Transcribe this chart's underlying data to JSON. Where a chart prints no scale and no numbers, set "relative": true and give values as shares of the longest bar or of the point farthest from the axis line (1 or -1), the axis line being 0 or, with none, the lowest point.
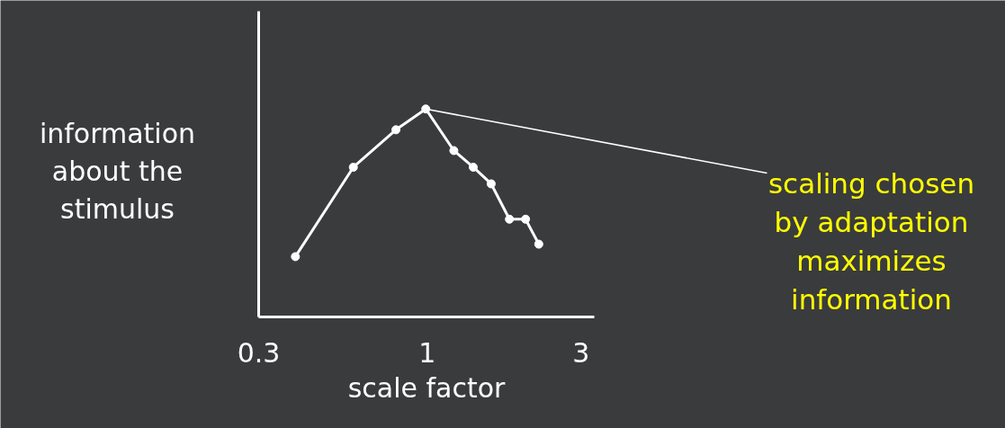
{
  "chart_data": {
    "type": "line",
    "relative": true,
    "log": "x",
    "xlabel": "scale factor",
    "ylabel": "information about the stimulus",
    "xlim": [
      0.3,
      3.3
    ],
    "xticks": [
      0.3,
      1,
      3
    ],
    "grid": false,
    "marker": "circle",
    "line_style": "solid",
    "x": [
      0.39,
      0.59,
      0.8,
      0.99,
      1.21,
      1.39,
      1.58,
      1.8,
      2.02,
      2.22
    ],
    "series": [
      {
        "color": "#ffffff",
        "values": [
          0.29,
          0.72,
          0.9,
          1.0,
          0.8,
          0.72,
          0.64,
          0.47,
          0.47,
          0.35
        ]
      }
    ],
    "annotations": [
      {
        "text": "scaling chosen by adaptation maximizes information",
        "x": 0.99,
        "y": 1.0
      }
    ]
  }
}
